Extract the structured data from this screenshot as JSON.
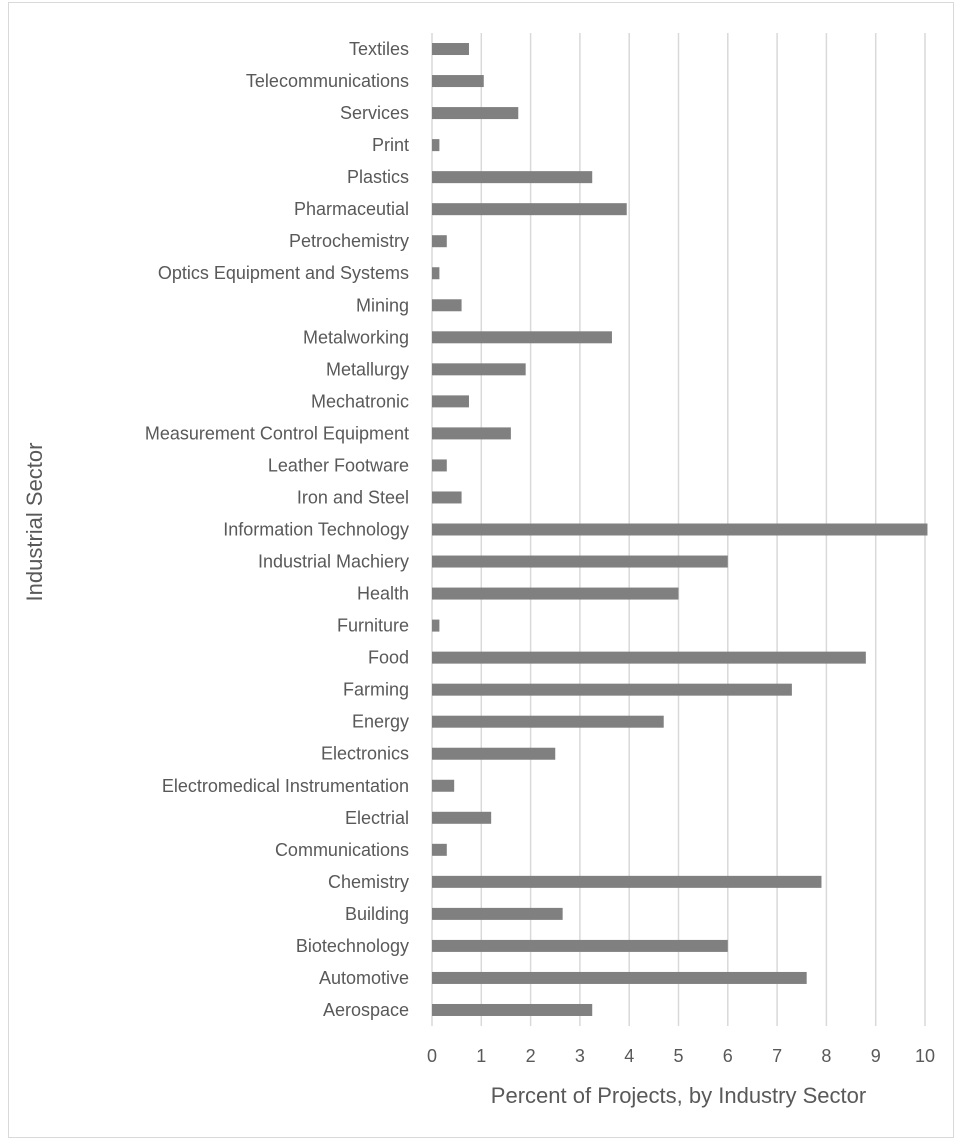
{
  "chart_data": {
    "type": "bar",
    "orientation": "horizontal",
    "xlabel": "Percent of Projects, by Industry Sector",
    "ylabel": "Industrial Sector",
    "xlim": [
      0,
      10
    ],
    "xticks": [
      "0",
      "1",
      "2",
      "3",
      "4",
      "5",
      "6",
      "7",
      "8",
      "9",
      "10"
    ],
    "grid": "vertical",
    "bar_color": "#808080",
    "grid_color": "#d9d9d9",
    "categories": [
      "Aerospace",
      "Automotive",
      "Biotechnology",
      "Building",
      "Chemistry",
      "Communications",
      "Electrial",
      "Electromedical Instrumentation",
      "Electronics",
      "Energy",
      "Farming",
      "Food",
      "Furniture",
      "Health",
      "Industrial Machiery",
      "Information Technology",
      "Iron and Steel",
      "Leather Footware",
      "Measurement Control Equipment",
      "Mechatronic",
      "Metallurgy",
      "Metalworking",
      "Mining",
      "Optics Equipment and Systems",
      "Petrochemistry",
      "Pharmaceutial",
      "Plastics",
      "Print",
      "Services",
      "Telecommunications",
      "Textiles"
    ],
    "values": [
      3.25,
      7.6,
      6.0,
      2.65,
      7.9,
      0.3,
      1.2,
      0.45,
      2.5,
      4.7,
      7.3,
      8.8,
      0.15,
      5.0,
      6.0,
      10.05,
      0.6,
      0.3,
      1.6,
      0.75,
      1.9,
      3.65,
      0.6,
      0.15,
      0.3,
      3.95,
      3.25,
      0.15,
      1.75,
      1.05,
      0.75
    ]
  }
}
